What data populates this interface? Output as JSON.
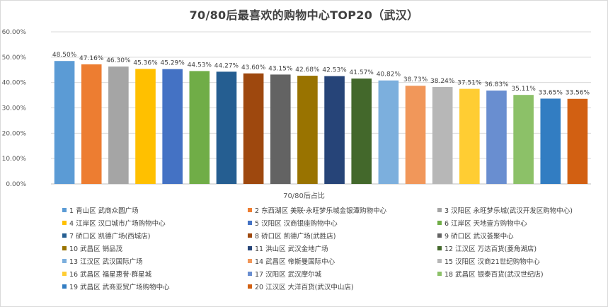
{
  "chart_data": {
    "type": "bar",
    "title": "70/80后最喜欢的购物中心TOP20（武汉）",
    "xlabel": "70/80后占比",
    "ylabel": "",
    "ylim": [
      0,
      60
    ],
    "yticks": [
      "0.00%",
      "10.00%",
      "20.00%",
      "30.00%",
      "40.00%",
      "50.00%",
      "60.00%"
    ],
    "grid": true,
    "legend_position": "bottom",
    "categories": [
      "1 青山区 武商众圆广场",
      "2 东西湖区 美联·永旺梦乐城金银潭购物中心",
      "3 汉阳区 永旺梦乐城(武汉开发区购物中心)",
      "4 江岸区 汉口城市广场购物中心",
      "5 汉阳区 汉商银座购物中心",
      "6 江岸区 天地壹方购物中心",
      "7 硚口区 凯德广场(西城店)",
      "8 硚口区 凯德广场(武胜店)",
      "9 硚口区 武汉荟聚中心",
      "10 武昌区 销品茂",
      "11 洪山区 武汉金地广场",
      "12 江汉区 万达百货(菱角湖店)",
      "13 江汉区 武汉国际广场",
      "14 武昌区 帝斯曼国际中心",
      "15 汉阳区 汉商21世纪购物中心",
      "16 武昌区 福星惠誉·群星城",
      "17 汉阳区 武汉摩尔城",
      "18 武昌区 银泰百货(武汉世纪店)",
      "19 武昌区 武商亚贸广场购物中心",
      "20 江汉区 大洋百货(武汉中山店)"
    ],
    "values": [
      48.5,
      47.16,
      46.3,
      45.36,
      45.29,
      44.53,
      44.27,
      43.6,
      43.15,
      42.68,
      42.53,
      41.57,
      40.82,
      38.73,
      38.24,
      37.51,
      36.83,
      35.11,
      33.65,
      33.56
    ],
    "value_labels": [
      "48.50%",
      "47.16%",
      "46.30%",
      "45.36%",
      "45.29%",
      "44.53%",
      "44.27%",
      "43.60%",
      "43.15%",
      "42.68%",
      "42.53%",
      "41.57%",
      "40.82%",
      "38.73%",
      "38.24%",
      "37.51%",
      "36.83%",
      "35.11%",
      "33.65%",
      "33.56%"
    ],
    "colors": [
      "#5b9bd5",
      "#ed7d31",
      "#a5a5a5",
      "#ffc000",
      "#4472c4",
      "#70ad47",
      "#255e91",
      "#9e480e",
      "#636363",
      "#997300",
      "#264478",
      "#43682b",
      "#7cafdd",
      "#f1975a",
      "#b7b7b7",
      "#ffcd33",
      "#698ed0",
      "#8cc168",
      "#327dc2",
      "#d26012"
    ]
  }
}
